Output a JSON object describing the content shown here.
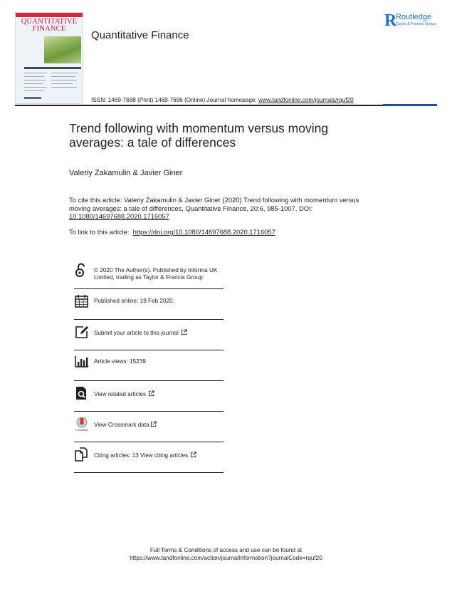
{
  "cover": {
    "title_line1": "QUANTITATIVE",
    "title_line2": "FINANCE"
  },
  "header": {
    "journal_name": "Quantitative Finance",
    "publisher_logo_text": "Routledge",
    "publisher_logo_subtext": "Taylor & Francis Group",
    "issn_text": "ISSN: 1469-7688 (Print) 1469-7696 (Online) Journal homepage: ",
    "homepage_url": "www.tandfonline.com/journals/rquf20"
  },
  "article": {
    "title": "Trend following with momentum versus moving averages: a tale of differences",
    "authors": "Valeriy Zakamulin & Javier Giner",
    "cite_text": "To cite this article: Valeriy Zakamulin & Javier Giner (2020) Trend following with momentum versus moving averages: a tale of differences, Quantitative Finance, 20:6, 985-1007, DOI: ",
    "cite_doi": "10.1080/14697688.2020.1716057",
    "link_label": "To link to this article: ",
    "link_url": "https://doi.org/10.1080/14697688.2020.1716057"
  },
  "info_items": [
    {
      "icon": "open-access-icon",
      "text": "© 2020 The Author(s). Published by Informa UK Limited, trading as Taylor & Francis Group"
    },
    {
      "icon": "calendar-icon",
      "text": "Published online: 19 Feb 2020."
    },
    {
      "icon": "edit-icon",
      "text": "Submit your article to this journal"
    },
    {
      "icon": "bar-chart-icon",
      "text": "Article views: 15239"
    },
    {
      "icon": "search-document-icon",
      "text": "View related articles"
    },
    {
      "icon": "crossmark-icon",
      "text": "View Crossmark data"
    },
    {
      "icon": "citing-articles-icon",
      "text": "Citing articles: 13 View citing articles"
    }
  ],
  "crossmark_label": "CrossMark",
  "footer": {
    "line1": "Full Terms & Conditions of access and use can be found at",
    "line2": "https://www.tandfonline.com/action/journalInformation?journalCode=rquf20"
  },
  "colors": {
    "text": "#231f20",
    "routledge_blue": "#1e6fc7",
    "rule_blue": "#1e4fa0",
    "cover_red": "#c8102e"
  }
}
